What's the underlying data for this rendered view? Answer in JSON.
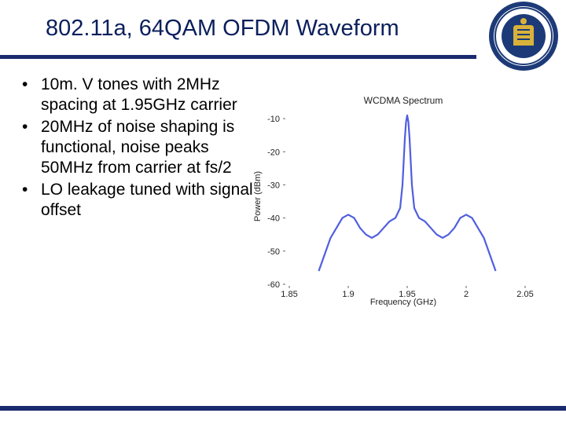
{
  "slide": {
    "title": "802.11a, 64QAM OFDM Waveform",
    "bullets": [
      "10m. V tones with 2MHz spacing at 1.95GHz carrier",
      "20MHz of noise shaping is functional, noise peaks 50MHz from carrier at fs/2",
      "LO leakage tuned with signal offset"
    ],
    "seal_alt": "University of California Berkeley seal",
    "accent_color": "#1a2a6e",
    "title_color": "#0b1f5c"
  },
  "chart_data": {
    "type": "line",
    "title": "WCDMA Spectrum",
    "xlabel": "Frequency (GHz)",
    "ylabel": "Power (dBm)",
    "xlim": [
      1.85,
      2.05
    ],
    "ylim": [
      -60,
      -5
    ],
    "xticks": [
      1.85,
      1.9,
      1.95,
      2,
      2.05
    ],
    "xtick_labels": [
      "1.85",
      "1.9",
      "1.95",
      "2",
      "2.05"
    ],
    "yticks": [
      -10,
      -20,
      -30,
      -40,
      -50,
      -60
    ],
    "ytick_labels": [
      "-10",
      "-20",
      "-30",
      "-40",
      "-50",
      "-60"
    ],
    "grid": false,
    "series_color": "#4f5ee0",
    "series": [
      {
        "x": [
          1.875,
          1.88,
          1.885,
          1.89,
          1.895,
          1.9,
          1.905,
          1.91,
          1.915,
          1.92,
          1.925,
          1.93,
          1.935,
          1.94,
          1.944,
          1.946,
          1.948,
          1.949,
          1.95,
          1.951,
          1.952,
          1.954,
          1.956,
          1.96,
          1.965,
          1.97,
          1.975,
          1.98,
          1.985,
          1.99,
          1.995,
          2.0,
          2.005,
          2.01,
          2.015,
          2.02,
          2.025
        ],
        "y": [
          -56,
          -51,
          -46,
          -43,
          -40,
          -39,
          -40,
          -43,
          -45,
          -46,
          -45,
          -43,
          -41,
          -40,
          -37,
          -30,
          -16,
          -11,
          -9,
          -11,
          -16,
          -30,
          -37,
          -40,
          -41,
          -43,
          -45,
          -46,
          -45,
          -43,
          -40,
          -39,
          -40,
          -43,
          -46,
          -51,
          -56
        ]
      }
    ]
  }
}
